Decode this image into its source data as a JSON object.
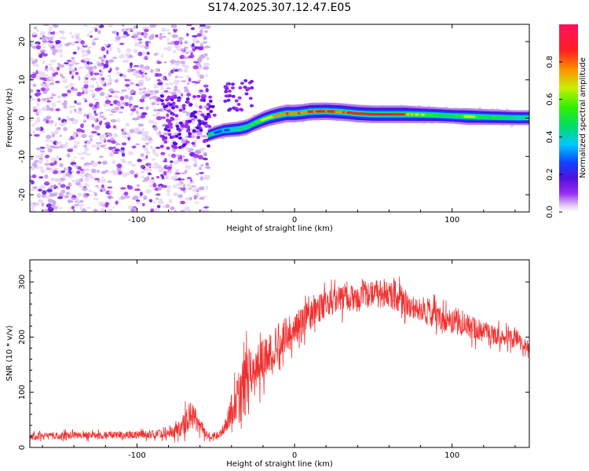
{
  "title": "S174.2025.307.12.47.E05",
  "chart_data": [
    {
      "type": "heatmap",
      "name": "spectrogram",
      "xlabel": "Height of straight line (km)",
      "ylabel": "Frequency (Hz)",
      "xlim": [
        -168,
        149
      ],
      "ylim": [
        -24.5,
        24.5
      ],
      "xticks": [
        -100,
        0,
        100
      ],
      "yticks": [
        -20,
        -10,
        0,
        10,
        20
      ],
      "colorbar": {
        "label": "Normalized spectral amplitude",
        "range": [
          0,
          1
        ],
        "ticks": [
          0.0,
          0.2,
          0.4,
          0.6,
          0.8
        ],
        "colors": [
          "#ffffff",
          "#e6d2f5",
          "#9a2bf0",
          "#5010e0",
          "#1040ff",
          "#00c8ff",
          "#00e060",
          "#30f000",
          "#c8f000",
          "#ff9000",
          "#ff2020",
          "#ff1060"
        ]
      },
      "noise_region_x": [
        -168,
        -55
      ],
      "ridge": {
        "x": [
          -55,
          -50,
          -45,
          -40,
          -35,
          -30,
          -25,
          -20,
          -15,
          -10,
          -5,
          0,
          5,
          10,
          20,
          30,
          40,
          50,
          60,
          70,
          80,
          90,
          100,
          110,
          120,
          130,
          140,
          149
        ],
        "freq": [
          -4.5,
          -3.8,
          -3.2,
          -3.0,
          -2.8,
          -2.3,
          -1.3,
          -0.4,
          0.3,
          0.8,
          1.2,
          1.2,
          1.4,
          1.7,
          1.8,
          1.6,
          1.2,
          1.0,
          1.0,
          1.0,
          0.9,
          0.8,
          0.6,
          0.4,
          0.3,
          0.2,
          0.1,
          0.1
        ],
        "amplitude": [
          0.3,
          0.35,
          0.4,
          0.45,
          0.5,
          0.55,
          0.6,
          0.7,
          0.75,
          0.8,
          0.85,
          0.85,
          0.85,
          0.9,
          0.9,
          0.85,
          0.9,
          0.95,
          0.95,
          0.85,
          0.7,
          0.6,
          0.55,
          0.7,
          0.6,
          0.55,
          0.5,
          0.5
        ]
      }
    },
    {
      "type": "line",
      "name": "snr",
      "xlabel": "Height of straight line (km)",
      "ylabel": "SNR (10 * v/v)",
      "xlim": [
        -168,
        149
      ],
      "ylim": [
        0,
        340
      ],
      "xticks": [
        -100,
        0,
        100
      ],
      "yticks": [
        0,
        100,
        200,
        300
      ],
      "color": "#f03030",
      "envelope": {
        "x": [
          -168,
          -140,
          -110,
          -80,
          -72,
          -66,
          -60,
          -55,
          -48,
          -45,
          -40,
          -35,
          -30,
          -25,
          -20,
          -10,
          0,
          10,
          20,
          30,
          40,
          50,
          60,
          70,
          80,
          90,
          100,
          110,
          120,
          130,
          140,
          149
        ],
        "mean": [
          20,
          22,
          22,
          25,
          35,
          60,
          40,
          20,
          22,
          35,
          70,
          90,
          120,
          140,
          160,
          190,
          215,
          240,
          260,
          270,
          275,
          280,
          275,
          265,
          250,
          240,
          230,
          220,
          210,
          200,
          195,
          185
        ],
        "spread": [
          12,
          12,
          12,
          14,
          30,
          50,
          30,
          10,
          14,
          20,
          60,
          90,
          110,
          80,
          70,
          60,
          55,
          50,
          45,
          45,
          45,
          45,
          45,
          45,
          45,
          45,
          40,
          40,
          35,
          30,
          30,
          25
        ]
      }
    }
  ]
}
